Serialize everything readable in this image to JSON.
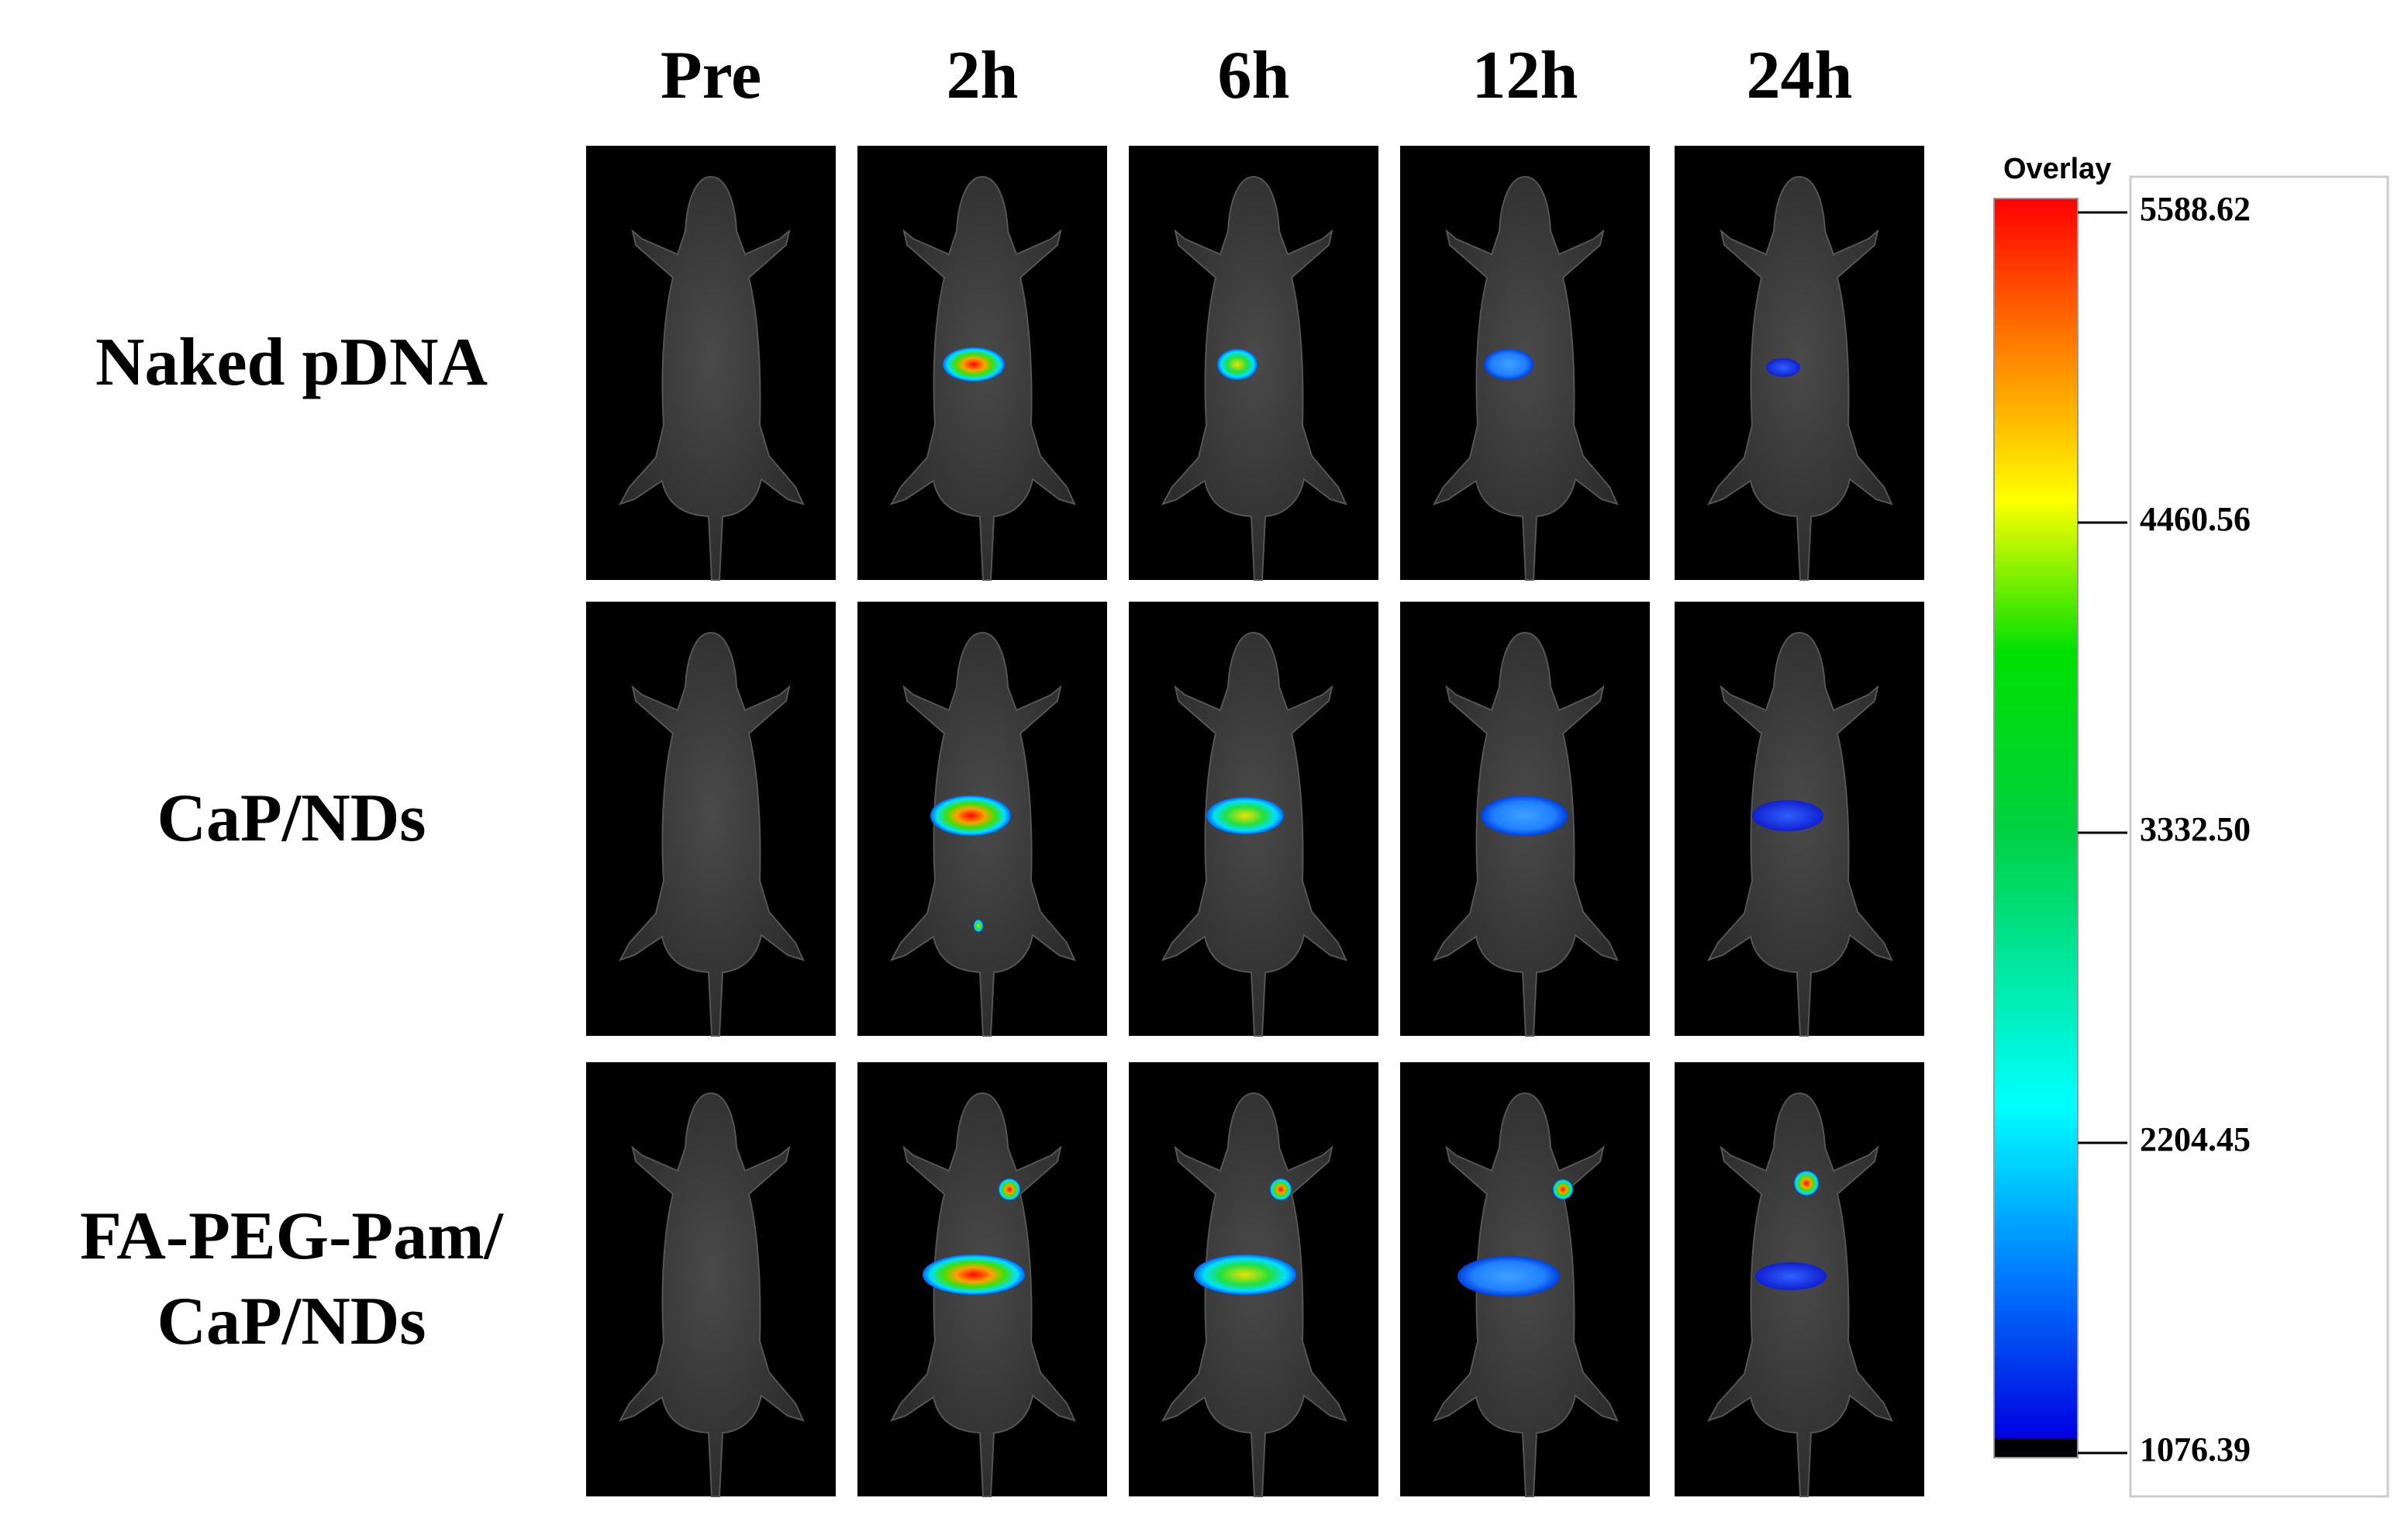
{
  "column_headers": [
    "Pre",
    "2h",
    "6h",
    "12h",
    "24h"
  ],
  "row_labels": [
    [
      "Naked pDNA"
    ],
    [
      "CaP/NDs"
    ],
    [
      "FA-PEG-Pam/",
      "CaP/NDs"
    ]
  ],
  "colorbar": {
    "title": "Overlay",
    "lim": [
      1076.39,
      5588.62
    ],
    "ticks": [
      5588.62,
      4460.56,
      {
        "value": 3332.5,
        "label": "3332.50"
      },
      2204.45,
      1076.39
    ]
  }
}
